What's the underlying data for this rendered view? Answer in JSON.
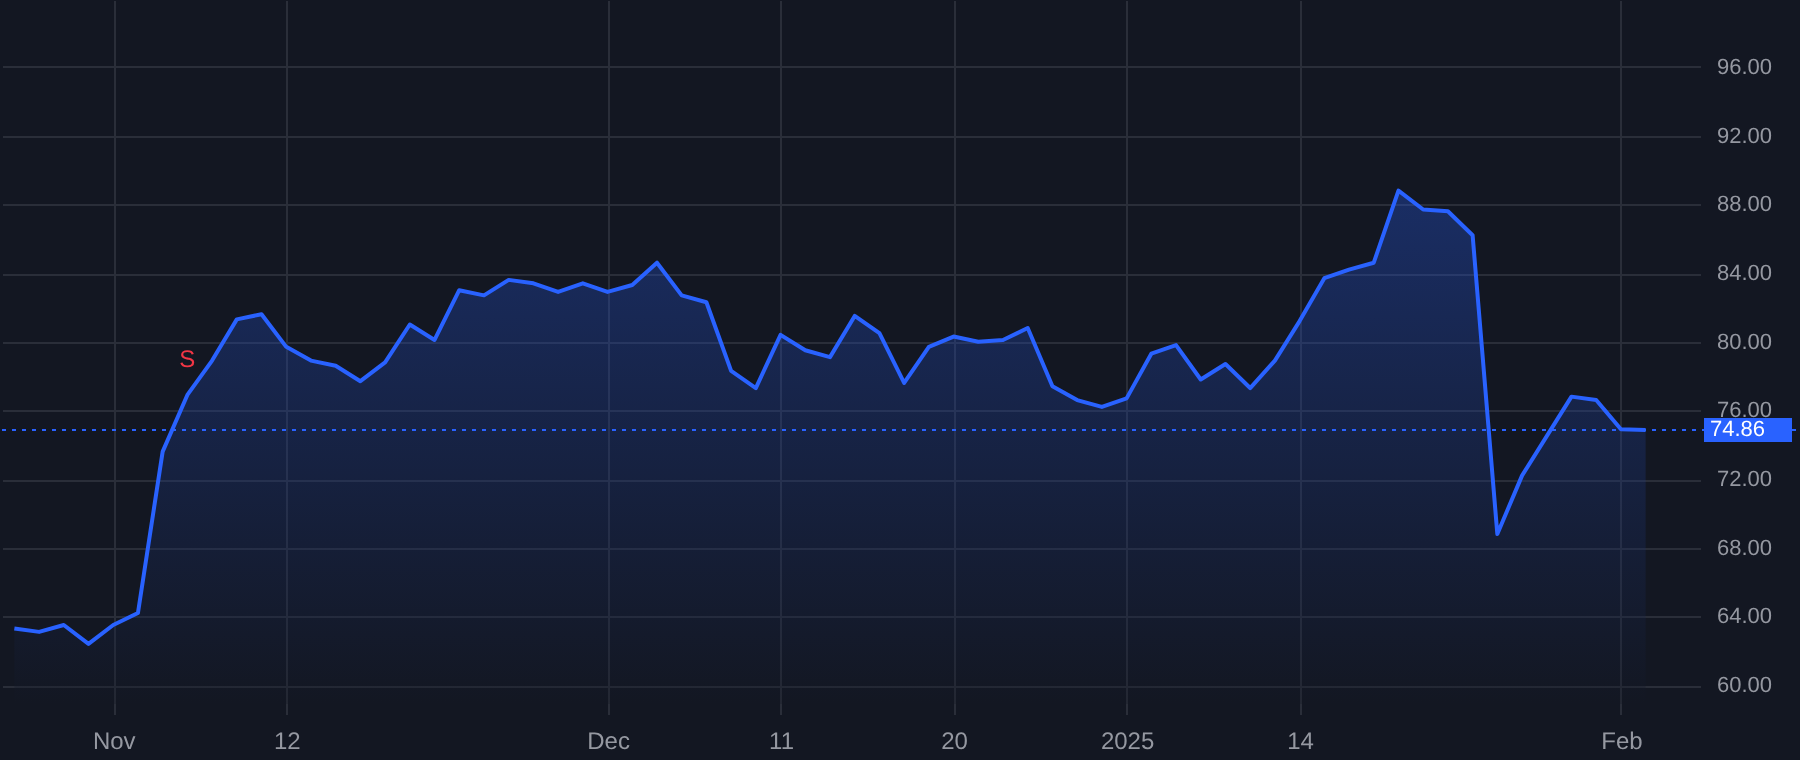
{
  "chart_data": {
    "type": "area",
    "categories": [
      null,
      null,
      null,
      null,
      "Nov",
      null,
      null,
      null,
      null,
      null,
      null,
      "12",
      null,
      null,
      null,
      null,
      null,
      null,
      null,
      null,
      null,
      null,
      null,
      null,
      "Dec",
      null,
      null,
      null,
      null,
      null,
      null,
      "11",
      null,
      null,
      null,
      null,
      null,
      null,
      "20",
      null,
      null,
      null,
      null,
      null,
      null,
      "2025",
      null,
      null,
      null,
      null,
      null,
      null,
      "14",
      null,
      null,
      null,
      null,
      null,
      null,
      null,
      null,
      null,
      null,
      null,
      null,
      "Feb",
      null
    ],
    "series": [
      {
        "color": "#2962ff",
        "values": [
          63.3,
          63.1,
          63.5,
          62.4,
          63.5,
          64.2,
          73.6,
          76.9,
          78.9,
          81.3,
          81.6,
          79.7,
          78.9,
          78.6,
          77.7,
          78.8,
          81.0,
          80.1,
          83.0,
          82.7,
          83.6,
          83.4,
          82.9,
          83.4,
          82.9,
          83.3,
          84.6,
          82.7,
          82.3,
          78.3,
          77.3,
          80.4,
          79.5,
          79.1,
          81.5,
          80.5,
          77.6,
          79.7,
          80.3,
          80.0,
          80.1,
          80.8,
          77.4,
          76.6,
          76.2,
          76.7,
          79.3,
          79.8,
          77.8,
          78.7,
          77.3,
          78.9,
          81.2,
          83.7,
          84.2,
          84.6,
          88.8,
          87.7,
          87.6,
          86.2,
          68.8,
          72.2,
          74.5,
          76.8,
          76.6,
          74.9,
          74.86
        ]
      }
    ],
    "ylim": [
      58.9,
      99.9
    ],
    "yticks": [
      {
        "value": 60,
        "label": "60.00"
      },
      {
        "value": 64,
        "label": "64.00"
      },
      {
        "value": 68,
        "label": "68.00"
      },
      {
        "value": 72,
        "label": "72.00"
      },
      {
        "value": 76,
        "label": "76.00"
      },
      {
        "value": 80,
        "label": "80.00"
      },
      {
        "value": 84,
        "label": "84.00"
      },
      {
        "value": 88,
        "label": "88.00"
      },
      {
        "value": 92,
        "label": "92.00"
      },
      {
        "value": 96,
        "label": "96.00"
      }
    ],
    "ref_lines": [
      {
        "axis": "y",
        "value": 74.86,
        "label": "74.86",
        "color": "#2962ff",
        "line_style": "dotted"
      }
    ],
    "annotations": [
      {
        "text": "S",
        "y": 76.9
      }
    ],
    "grid": true
  }
}
